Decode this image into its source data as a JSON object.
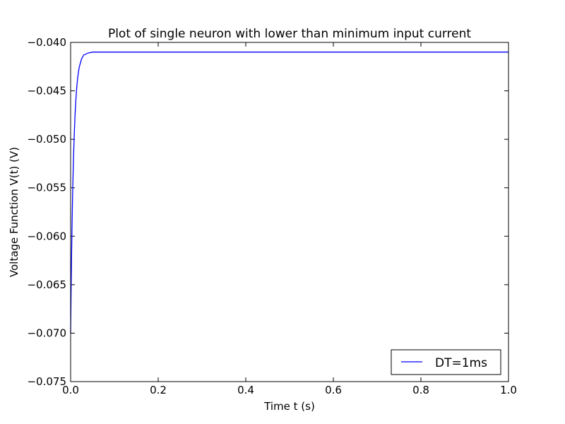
{
  "chart_data": {
    "type": "line",
    "title": "Plot of single neuron with lower than minimum input current",
    "xlabel": "Time t (s)",
    "ylabel": "Voltage Function V(t) (V)",
    "xlim": [
      0.0,
      1.0
    ],
    "ylim": [
      -0.075,
      -0.04
    ],
    "x_ticks": [
      0.0,
      0.2,
      0.4,
      0.6,
      0.8,
      1.0
    ],
    "x_tick_labels": [
      "0.0",
      "0.2",
      "0.4",
      "0.6",
      "0.8",
      "1.0"
    ],
    "y_ticks": [
      -0.075,
      -0.07,
      -0.065,
      -0.06,
      -0.055,
      -0.05,
      -0.045,
      -0.04
    ],
    "y_tick_labels": [
      "−0.075",
      "−0.070",
      "−0.065",
      "−0.060",
      "−0.055",
      "−0.050",
      "−0.045",
      "−0.040"
    ],
    "grid": false,
    "legend_position": "lower-right",
    "series": [
      {
        "name": "DT=1ms",
        "color": "#0000ff",
        "x": [
          0.0,
          0.001,
          0.002,
          0.003,
          0.004,
          0.005,
          0.006,
          0.007,
          0.008,
          0.01,
          0.012,
          0.014,
          0.016,
          0.018,
          0.02,
          0.025,
          0.03,
          0.035,
          0.04,
          0.05,
          0.06,
          0.07,
          0.08,
          0.1,
          0.15,
          0.2,
          0.3,
          0.4,
          0.5,
          0.6,
          0.7,
          0.8,
          0.9,
          1.0
        ],
        "y": [
          -0.07,
          -0.066,
          -0.0625,
          -0.0595,
          -0.057,
          -0.0548,
          -0.0529,
          -0.0513,
          -0.0499,
          -0.0476,
          -0.0459,
          -0.0446,
          -0.0437,
          -0.043,
          -0.0425,
          -0.0417,
          -0.0413,
          -0.0412,
          -0.0411,
          -0.041,
          -0.041,
          -0.041,
          -0.041,
          -0.041,
          -0.041,
          -0.041,
          -0.041,
          -0.041,
          -0.041,
          -0.041,
          -0.041,
          -0.041,
          -0.041,
          -0.041
        ]
      }
    ]
  }
}
